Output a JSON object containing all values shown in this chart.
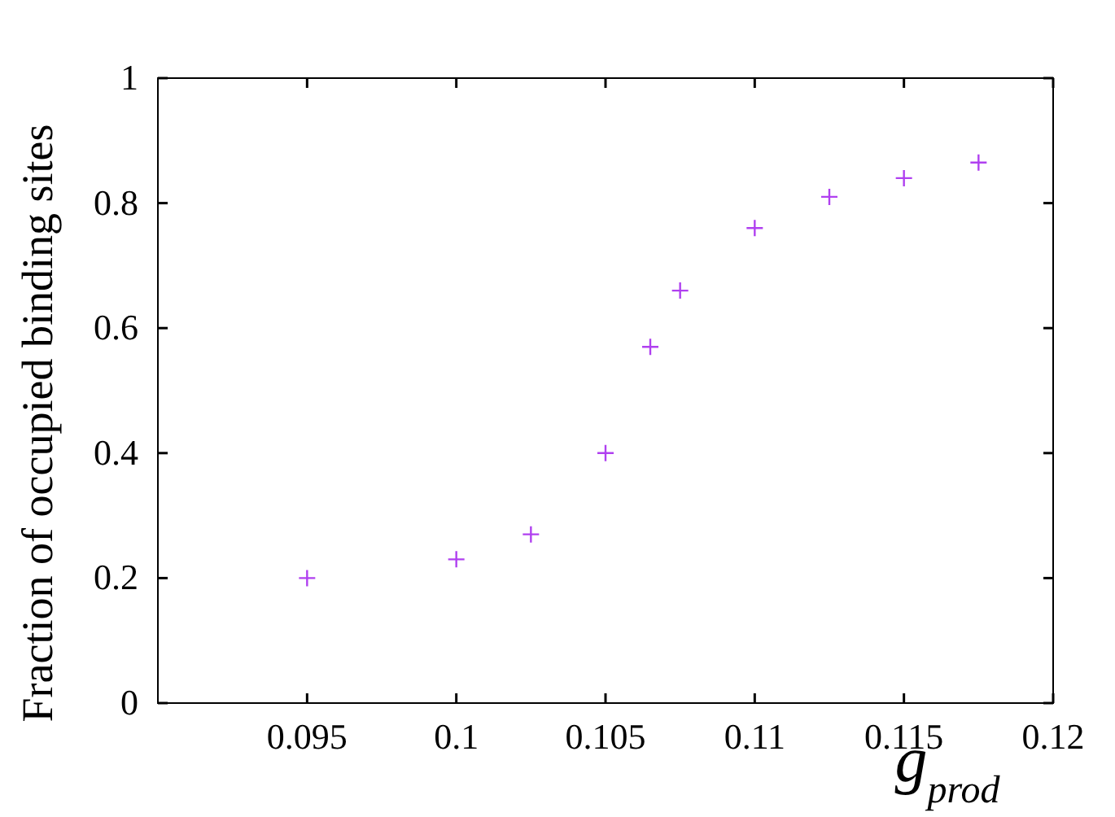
{
  "chart_data": {
    "type": "scatter",
    "xlabel": "g$_{prod}$",
    "ylabel": "Fraction of occupied binding sites",
    "x": [
      0.095,
      0.1,
      0.1025,
      0.105,
      0.1065,
      0.1075,
      0.11,
      0.1125,
      0.115,
      0.1175
    ],
    "series": [
      {
        "color": "#b040f0",
        "values": [
          0.2,
          0.23,
          0.27,
          0.4,
          0.57,
          0.66,
          0.76,
          0.81,
          0.84,
          0.865
        ]
      }
    ],
    "xlim": [
      0.09,
      0.12
    ],
    "xticks": [
      0.095,
      0.1,
      0.105,
      0.11,
      0.115,
      0.12
    ],
    "ylim": [
      0,
      1
    ],
    "yticks": [
      0,
      0.2,
      0.4,
      0.6,
      0.8,
      1
    ],
    "marker": "cross",
    "grid": false
  }
}
